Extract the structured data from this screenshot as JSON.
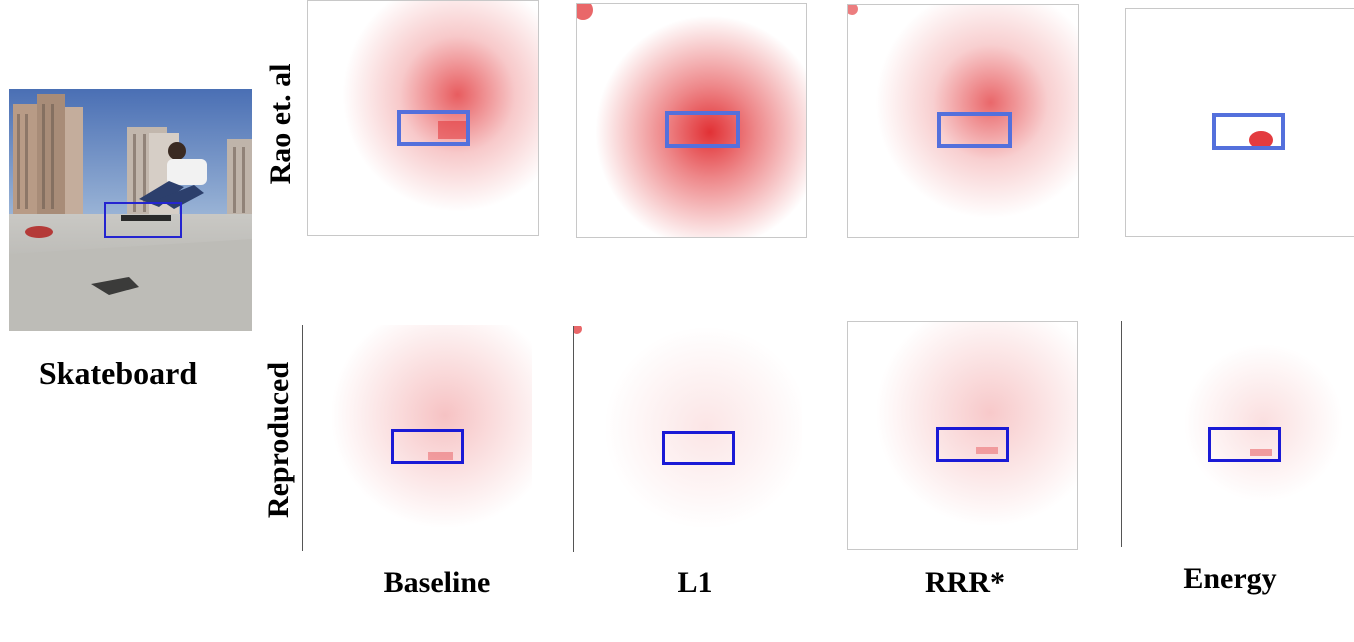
{
  "figure": {
    "class_label": "Skateboard",
    "row_labels": [
      "Rao et. al",
      "Reproduced"
    ],
    "column_labels": [
      "Baseline",
      "L1",
      "RRR*",
      "Energy"
    ]
  },
  "colors": {
    "rao_box": "#5470dc",
    "reproduced_box": "#1a1ad6",
    "photo_box": "#2424d0",
    "heat": "#e0262a"
  }
}
